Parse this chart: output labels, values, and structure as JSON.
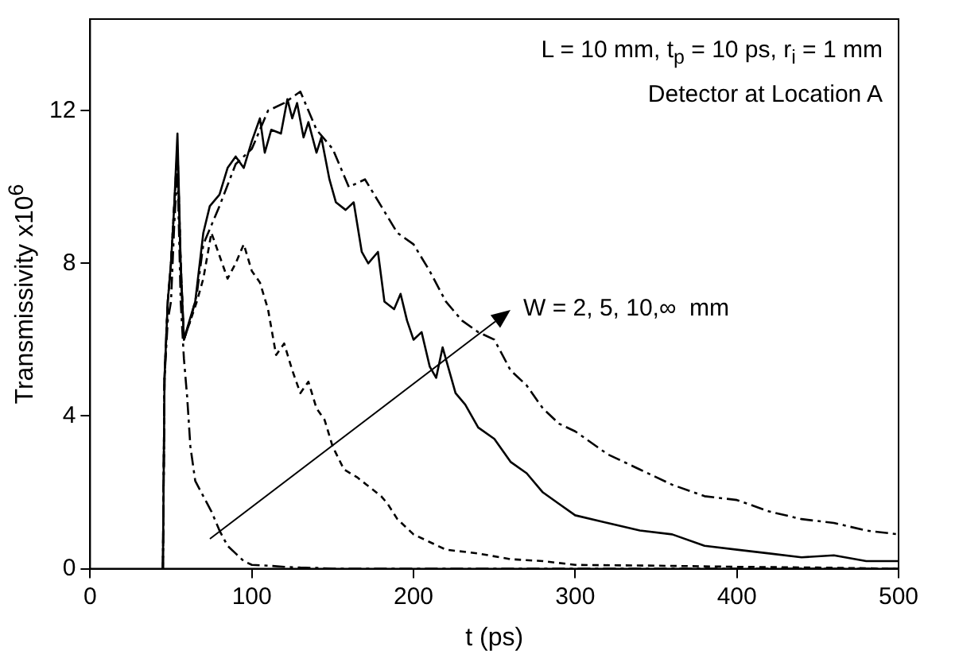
{
  "chart_data": {
    "type": "line",
    "xlabel": "t (ps)",
    "ylabel": "Transmissivity x10$^{6}$",
    "xlim": [
      0,
      500
    ],
    "xticks": [
      0,
      100,
      200,
      300,
      400,
      500
    ],
    "ylim": [
      0,
      14.4
    ],
    "yticks": [
      0,
      4,
      8,
      12
    ],
    "grid": false,
    "legend": false,
    "annotations": [
      "L = 10 mm, t$_{p}$ = 10 ps, r$_{i}$ = 1 mm",
      "Detector at Location A",
      "W = 2, 5, 10,∞  mm"
    ],
    "series": [
      {
        "color": "#000000",
        "line_style": "dashed",
        "x": [
          45,
          46,
          48,
          50,
          52,
          54,
          56,
          58,
          60,
          62,
          65,
          70,
          75,
          80,
          85,
          90,
          95,
          100,
          110,
          120,
          130,
          140,
          150,
          200,
          300,
          400,
          500
        ],
        "values": [
          0,
          5,
          6.5,
          7,
          9,
          10.5,
          7,
          5.5,
          4.5,
          3.2,
          2.3,
          1.9,
          1.5,
          1.0,
          0.6,
          0.4,
          0.2,
          0.1,
          0.08,
          0.05,
          0.03,
          0.02,
          0,
          0,
          0,
          0,
          0
        ]
      },
      {
        "color": "#000000",
        "line_style": "dotted",
        "x": [
          45,
          46,
          48,
          50,
          52,
          54,
          56,
          58,
          62,
          66,
          70,
          75,
          80,
          85,
          90,
          95,
          100,
          105,
          110,
          115,
          120,
          125,
          130,
          135,
          140,
          145,
          150,
          157,
          165,
          171,
          180,
          184,
          190,
          200,
          210,
          220,
          240,
          260,
          280,
          300,
          350,
          400,
          450,
          500
        ],
        "values": [
          0,
          5,
          7,
          8,
          9.5,
          11,
          8,
          6,
          6.5,
          7,
          7.6,
          8.8,
          8.2,
          7.6,
          8.0,
          8.5,
          7.8,
          7.5,
          6.8,
          5.6,
          5.9,
          5.2,
          4.6,
          4.9,
          4.2,
          3.9,
          3.2,
          2.6,
          2.4,
          2.2,
          1.9,
          1.7,
          1.3,
          0.9,
          0.7,
          0.5,
          0.4,
          0.25,
          0.2,
          0.1,
          0.08,
          0.05,
          0.03,
          0
        ]
      },
      {
        "color": "#000000",
        "line_style": "solid",
        "x": [
          45,
          46,
          48,
          50,
          52,
          54,
          56,
          58,
          60,
          65,
          70,
          74,
          80,
          85,
          90,
          95,
          100,
          105,
          108,
          112,
          118,
          122,
          125,
          128,
          132,
          135,
          140,
          143,
          148,
          152,
          158,
          163,
          168,
          172,
          178,
          182,
          188,
          192,
          196,
          200,
          205,
          210,
          214,
          218,
          222,
          226,
          232,
          240,
          250,
          260,
          270,
          280,
          290,
          300,
          320,
          340,
          360,
          380,
          400,
          420,
          440,
          460,
          480,
          500
        ],
        "values": [
          0,
          5,
          7,
          8,
          9.5,
          11.4,
          8,
          6,
          6.3,
          7,
          8.8,
          9.5,
          9.8,
          10.5,
          10.8,
          10.5,
          11.2,
          11.8,
          10.9,
          11.5,
          11.4,
          12.3,
          11.8,
          12.2,
          11.3,
          11.7,
          10.9,
          11.3,
          10.2,
          9.6,
          9.4,
          9.6,
          8.3,
          8.0,
          8.3,
          7.0,
          6.8,
          7.2,
          6.5,
          6.0,
          6.2,
          5.3,
          5.0,
          5.8,
          5.2,
          4.6,
          4.3,
          3.7,
          3.4,
          2.8,
          2.5,
          2.0,
          1.7,
          1.4,
          1.2,
          1.0,
          0.9,
          0.6,
          0.5,
          0.4,
          0.3,
          0.35,
          0.2,
          0.2
        ]
      },
      {
        "color": "#000000",
        "line_style": "dashed",
        "x": [
          45,
          46,
          48,
          50,
          52,
          54,
          56,
          58,
          62,
          66,
          70,
          80,
          90,
          100,
          110,
          120,
          130,
          140,
          150,
          160,
          170,
          180,
          190,
          200,
          210,
          220,
          230,
          240,
          250,
          260,
          270,
          280,
          290,
          300,
          320,
          340,
          360,
          380,
          400,
          420,
          440,
          460,
          480,
          500
        ],
        "values": [
          0,
          5,
          7,
          8,
          9.5,
          11,
          8,
          6,
          6.5,
          7.2,
          8.5,
          9.5,
          10.6,
          11.0,
          12.0,
          12.2,
          12.5,
          11.5,
          11.0,
          10.0,
          10.2,
          9.5,
          8.8,
          8.5,
          7.8,
          7.0,
          6.5,
          6.2,
          6.0,
          5.2,
          4.8,
          4.2,
          3.8,
          3.6,
          3.0,
          2.6,
          2.2,
          1.9,
          1.8,
          1.5,
          1.3,
          1.2,
          1.0,
          0.9
        ]
      }
    ]
  }
}
